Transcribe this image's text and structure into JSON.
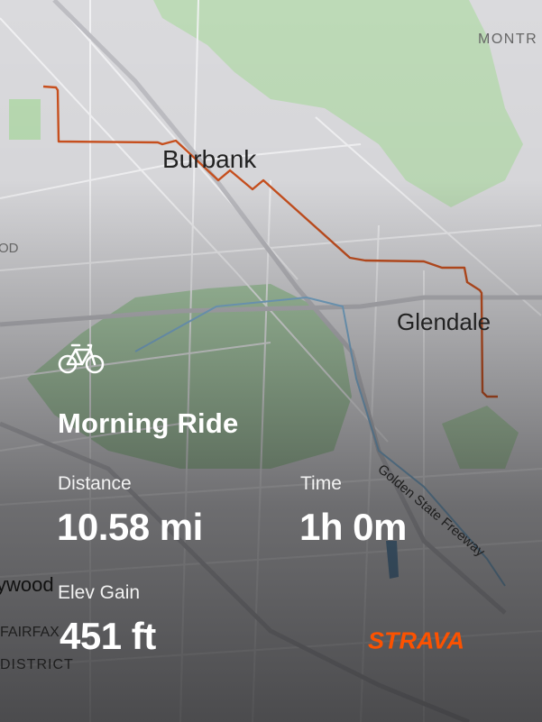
{
  "map": {
    "labels": {
      "burbank": "Burbank",
      "glendale": "Glendale",
      "montrose": "MONTR",
      "hollywood_edge": "OD",
      "ywood": "ywood",
      "fairfax": "FAIRFAX",
      "district": "DISTRICT",
      "freeway": "Golden State Freeway"
    },
    "route_color": "#c9501e"
  },
  "activity": {
    "icon": "bike-icon",
    "title": "Morning Ride",
    "stats": {
      "distance_label": "Distance",
      "distance_value": "10.58 mi",
      "time_label": "Time",
      "time_value": "1h 0m",
      "elev_label": "Elev Gain",
      "elev_value": "451 ft"
    }
  },
  "brand": {
    "logo": "STRAVA",
    "color": "#fc5200"
  }
}
